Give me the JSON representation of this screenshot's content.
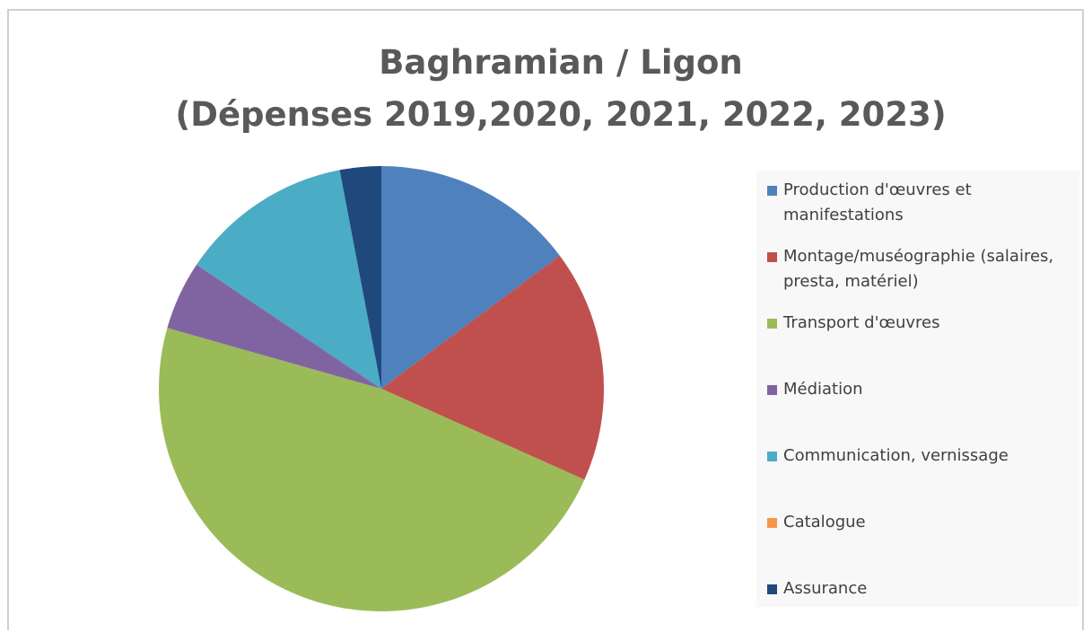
{
  "chart_data": {
    "type": "pie",
    "title": [
      "Baghramian / Ligon",
      "(Dépenses 2019,2020, 2021, 2022, 2023)"
    ],
    "categories": [
      "Production d'œuvres et manifestations",
      "Montage/muséographie (salaires, presta, matériel)",
      "Transport d'œuvres",
      "Médiation",
      "Communication, vernissage",
      "Catalogue",
      "Assurance"
    ],
    "values": [
      14.8,
      16.9,
      47.7,
      5,
      12.6,
      0,
      3
    ],
    "colors": [
      "#4f81bd",
      "#c0504d",
      "#9bbb59",
      "#8064a2",
      "#4bacc6",
      "#f79646",
      "#1f497d"
    ],
    "legend": "right"
  }
}
